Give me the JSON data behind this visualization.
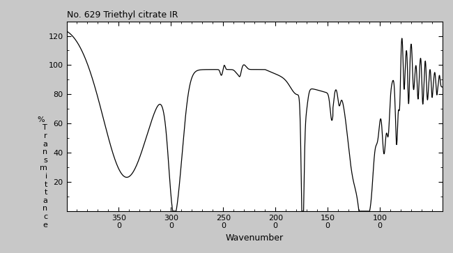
{
  "title": "No. 629 Triethyl citrate IR",
  "xlabel": "Wavenumber",
  "ylabel": "% \nT\nr\na\nn\ns\nm\ni\nt\nt\na\nn\nc\ne",
  "xlim": [
    4000,
    400
  ],
  "ylim": [
    0,
    130
  ],
  "yticks": [
    20,
    40,
    60,
    80,
    100,
    120
  ],
  "xticks": [
    3500,
    3000,
    2500,
    2000,
    1500,
    1000
  ],
  "xticklabels": [
    "350\n0",
    "300\n0",
    "250\n0",
    "200\n0",
    "150\n0",
    "100\n0"
  ],
  "bg_color": "#ffffff",
  "line_color": "#000000",
  "fig_bg": "#c8c8c8"
}
